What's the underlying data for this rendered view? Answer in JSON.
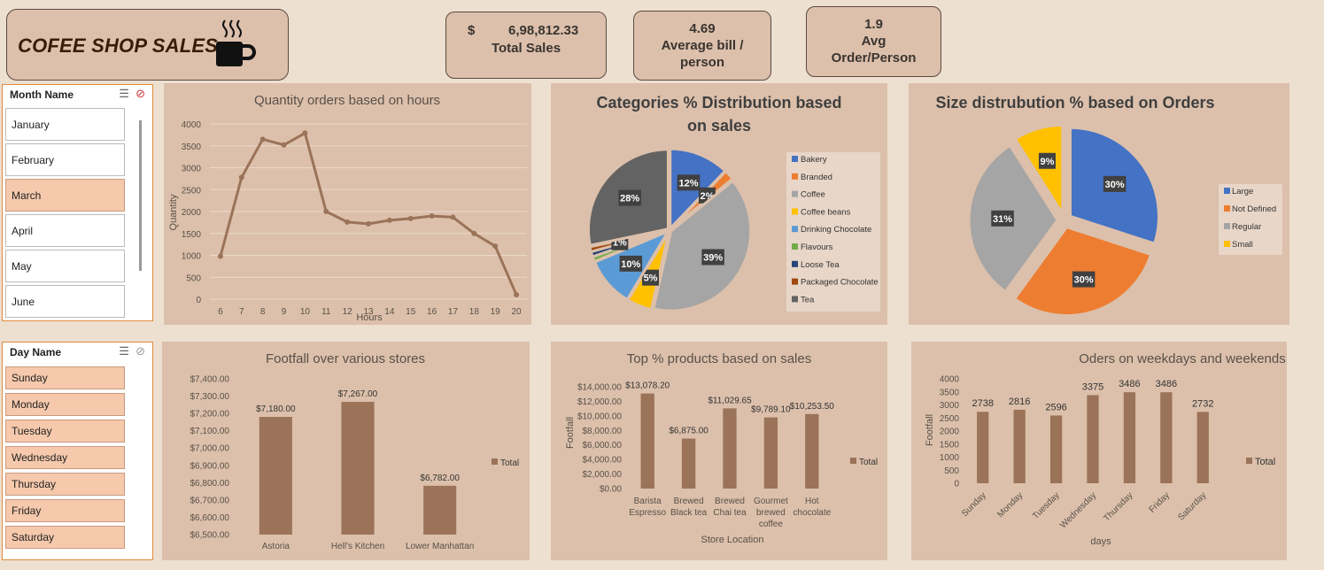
{
  "header": {
    "title": "COFEE SHOP SALES"
  },
  "kpis": [
    {
      "currency": "$",
      "value": "6,98,812.33",
      "label": "Total Sales"
    },
    {
      "value": "4.69",
      "label_line1": "Average bill /",
      "label_line2": "person"
    },
    {
      "value": "1.9",
      "label_line1": "Avg",
      "label_line2": "Order/Person"
    }
  ],
  "slicers": {
    "month": {
      "title": "Month Name",
      "items": [
        "January",
        "February",
        "March",
        "April",
        "May",
        "June"
      ],
      "selected": [
        "March"
      ]
    },
    "day": {
      "title": "Day Name",
      "items": [
        "Sunday",
        "Monday",
        "Tuesday",
        "Wednesday",
        "Thursday",
        "Friday",
        "Saturday"
      ],
      "selected": [
        "Sunday",
        "Monday",
        "Tuesday",
        "Wednesday",
        "Thursday",
        "Friday",
        "Saturday"
      ]
    }
  },
  "colors": {
    "brown": "#9b7358",
    "blue": "#4472c4",
    "orange": "#ed7d31",
    "gray": "#a5a5a5",
    "yellow": "#ffc000",
    "lightblue": "#5b9bd5",
    "green": "#70ad47",
    "navy": "#264478",
    "rust": "#9e480e",
    "darkgray": "#636363"
  },
  "chart_data": [
    {
      "id": "hours",
      "type": "line",
      "title": "Quantity orders based on hours",
      "xlabel": "Hours",
      "ylabel": "Quantity",
      "x": [
        6,
        7,
        8,
        9,
        10,
        11,
        12,
        13,
        14,
        15,
        16,
        17,
        18,
        19,
        20
      ],
      "values": [
        980,
        2780,
        3650,
        3520,
        3790,
        2000,
        1760,
        1720,
        1800,
        1840,
        1900,
        1870,
        1500,
        1210,
        100
      ],
      "yticks": [
        "0",
        "500",
        "1000",
        "1500",
        "2000",
        "2500",
        "3000",
        "3500",
        "4000"
      ],
      "ylim": [
        0,
        4000
      ]
    },
    {
      "id": "categories",
      "type": "pie",
      "title_line1": "Categories % Distribution based",
      "title_line2": "on sales",
      "categories": [
        "Bakery",
        "Branded",
        "Coffee",
        "Coffee beans",
        "Drinking Chocolate",
        "Flavours",
        "Loose Tea",
        "Packaged Chocolate",
        "Tea"
      ],
      "values": [
        12,
        2,
        39,
        5,
        10,
        1,
        1,
        1,
        28
      ],
      "labels": [
        "12%",
        "2%",
        "39%",
        "5%",
        "10%",
        "",
        "",
        "1%",
        "28%"
      ],
      "legend": "right"
    },
    {
      "id": "size",
      "type": "pie",
      "title": "Size distrubution % based on Orders",
      "categories": [
        "Large",
        "Not Defined",
        "Regular",
        "Small"
      ],
      "values": [
        30,
        30,
        31,
        9
      ],
      "labels": [
        "30%",
        "30%",
        "31%",
        "9%"
      ],
      "legend": "right"
    },
    {
      "id": "stores",
      "type": "bar",
      "title": "Footfall over various stores",
      "categories": [
        "Astoria",
        "Hell's Kitchen",
        "Lower Manhattan"
      ],
      "values": [
        7180,
        7267,
        6782
      ],
      "labels": [
        "$7,180.00",
        "$7,267.00",
        "$6,782.00"
      ],
      "yticks": [
        "$6,500.00",
        "$6,600.00",
        "$6,700.00",
        "$6,800.00",
        "$6,900.00",
        "$7,000.00",
        "$7,100.00",
        "$7,200.00",
        "$7,300.00",
        "$7,400.00"
      ],
      "ylim": [
        6500,
        7400
      ],
      "legend_label": "Total"
    },
    {
      "id": "products",
      "type": "bar",
      "title": "Top % products based on sales",
      "categories": [
        "Barista Espresso",
        "Brewed Black tea",
        "Brewed Chai tea",
        "Gourmet brewed coffee",
        "Hot chocolate"
      ],
      "category_lines": [
        [
          "Barista",
          "Espresso"
        ],
        [
          "Brewed",
          "Black tea"
        ],
        [
          "Brewed",
          "Chai tea"
        ],
        [
          "Gourmet",
          "brewed",
          "coffee"
        ],
        [
          "Hot",
          "chocolate"
        ]
      ],
      "values": [
        13078.2,
        6875.0,
        11029.65,
        9789.1,
        10253.5
      ],
      "labels": [
        "$13,078.20",
        "$6,875.00",
        "$11,029.65",
        "$9,789.10",
        "$10,253.50"
      ],
      "yticks": [
        "$0.00",
        "$2,000.00",
        "$4,000.00",
        "$6,000.00",
        "$8,000.00",
        "$10,000.00",
        "$12,000.00",
        "$14,000.00"
      ],
      "ylim": [
        0,
        14000
      ],
      "xlabel": "Store Location",
      "ylabel": "Footfall",
      "legend_label": "Total"
    },
    {
      "id": "weekdays",
      "type": "bar",
      "title": "Oders on weekdays and weekends",
      "categories": [
        "Sunday",
        "Monday",
        "Tuesday",
        "Wednesday",
        "Thursday",
        "Friday",
        "Saturday"
      ],
      "values": [
        2738,
        2816,
        2596,
        3375,
        3486,
        3486,
        2732
      ],
      "labels": [
        "2738",
        "2816",
        "2596",
        "3375",
        "3486",
        "3486",
        "2732"
      ],
      "yticks": [
        "0",
        "500",
        "1000",
        "1500",
        "2000",
        "2500",
        "3000",
        "3500",
        "4000"
      ],
      "ylim": [
        0,
        4000
      ],
      "xlabel": "days",
      "ylabel": "Footfall",
      "legend_label": "Total"
    }
  ]
}
